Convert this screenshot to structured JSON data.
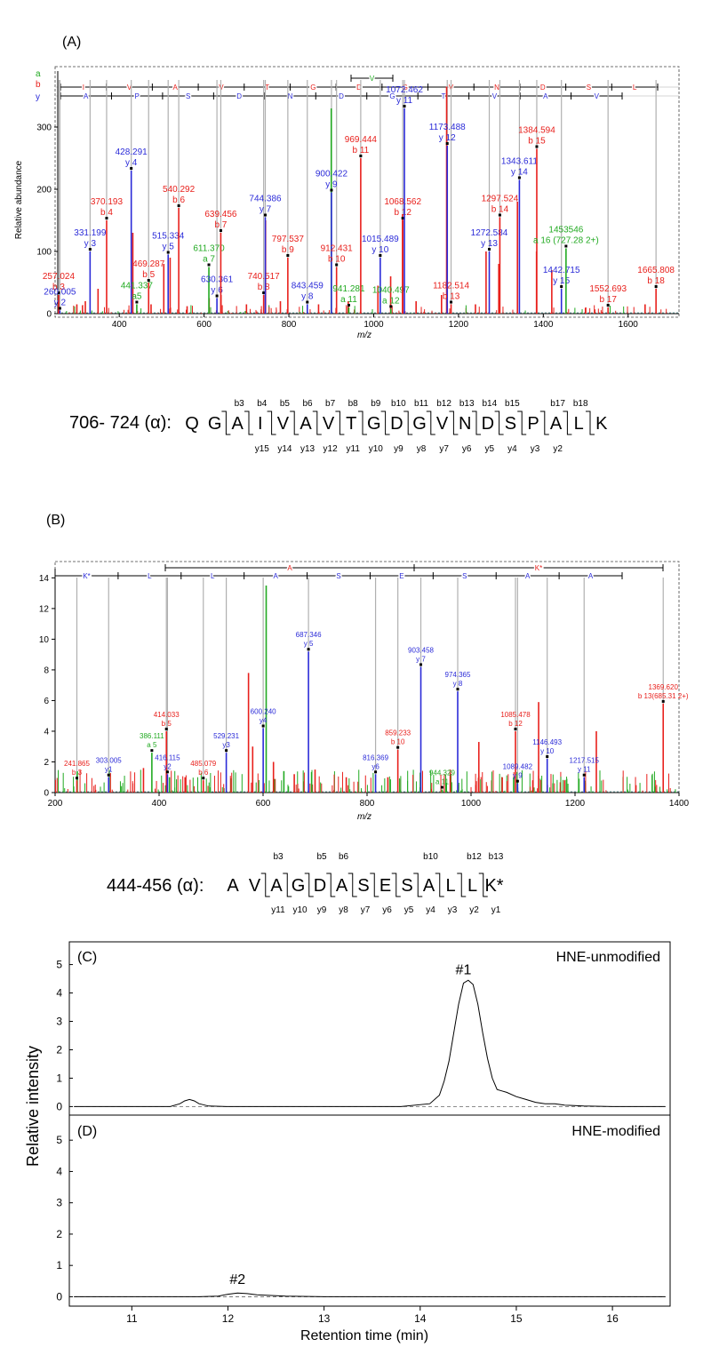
{
  "colors": {
    "a": "#22aa22",
    "b": "#e8201c",
    "y": "#2b2bd8",
    "axis": "#000000",
    "grey": "#b0b0b0",
    "dash": "#4a8a8a"
  },
  "figure": {
    "A": {
      "panel_label": "(A)",
      "ylabel": "Relative abundance",
      "xlabel": "m/z",
      "legend_a": "a",
      "legend_b": "b",
      "legend_y": "y"
    },
    "B": {
      "panel_label": "(B)",
      "xlabel": "m/z"
    },
    "C": {
      "panel_label": "(C)",
      "title": "HNE-unmodified",
      "peak_label": "#1"
    },
    "D": {
      "panel_label": "(D)",
      "title": "HNE-modified",
      "peak_label": "#2",
      "xlabel": "Retention time (min)"
    },
    "CD_ylabel": "Relative intensity"
  },
  "sequences": {
    "A": {
      "prefix": "706- 724 (α): ",
      "residues": [
        "Q",
        "G",
        "A",
        "I",
        "V",
        "A",
        "V",
        "T",
        "G",
        "D",
        "G",
        "V",
        "N",
        "D",
        "S",
        "P",
        "A",
        "L",
        "K"
      ],
      "b_labels": [
        "",
        "",
        "b3",
        "b4",
        "b5",
        "b6",
        "b7",
        "b8",
        "b9",
        "b10",
        "b11",
        "b12",
        "b13",
        "b14",
        "b15",
        "",
        "b17",
        "b18",
        ""
      ],
      "y_labels": [
        "",
        "",
        "",
        "y15",
        "y14",
        "y13",
        "y12",
        "y11",
        "y10",
        "y9",
        "y8",
        "y7",
        "y6",
        "y5",
        "y4",
        "y3",
        "y2",
        "",
        ""
      ]
    },
    "B": {
      "prefix": "444-456 (α): ",
      "residues": [
        "A",
        "V",
        "A",
        "G",
        "D",
        "A",
        "S",
        "E",
        "S",
        "A",
        "L",
        "L",
        "K*"
      ],
      "b_labels": [
        "",
        "",
        "b3",
        "",
        "b5",
        "b6",
        "",
        "",
        "",
        "b10",
        "",
        "b12",
        "b13"
      ],
      "y_labels": [
        "",
        "",
        "y11",
        "y10",
        "y9",
        "y8",
        "y7",
        "y6",
        "y5",
        "y4",
        "y3",
        "y2",
        "y1"
      ]
    }
  },
  "chart_data": [
    {
      "type": "bar",
      "panel": "A",
      "xlabel": "m/z",
      "ylabel": "Relative abundance",
      "xlim": [
        255,
        1720
      ],
      "ylim": [
        0,
        390
      ],
      "xticks": [
        400,
        600,
        800,
        1000,
        1200,
        1400,
        1600
      ],
      "yticks": [
        0,
        100,
        200,
        300
      ],
      "ion_ladders": {
        "b": [
          "I",
          "V",
          "A",
          "V",
          "T",
          "G",
          "D",
          "G",
          "V",
          "N",
          "D",
          "S",
          "L"
        ],
        "y": [
          "A",
          "P",
          "S",
          "D",
          "N",
          "D",
          "G",
          "T",
          "V",
          "A",
          "V"
        ],
        "a": [
          "V"
        ]
      },
      "labeled_peaks": [
        {
          "mz": 257.024,
          "value": 30,
          "label": "b 3",
          "series": "b"
        },
        {
          "mz": 260.005,
          "value": 5,
          "label": "y 2",
          "series": "y"
        },
        {
          "mz": 331.199,
          "value": 100,
          "label": "y 3",
          "series": "y"
        },
        {
          "mz": 370.193,
          "value": 150,
          "label": "b 4",
          "series": "b"
        },
        {
          "mz": 428.291,
          "value": 230,
          "label": "y 4",
          "series": "y"
        },
        {
          "mz": 441.337,
          "value": 15,
          "label": "a5",
          "series": "a"
        },
        {
          "mz": 469.287,
          "value": 50,
          "label": "b 5",
          "series": "b"
        },
        {
          "mz": 515.334,
          "value": 95,
          "label": "y 5",
          "series": "y"
        },
        {
          "mz": 540.292,
          "value": 170,
          "label": "b 6",
          "series": "b"
        },
        {
          "mz": 611.37,
          "value": 75,
          "label": "a 7",
          "series": "a"
        },
        {
          "mz": 630.361,
          "value": 25,
          "label": "y 6",
          "series": "y"
        },
        {
          "mz": 639.456,
          "value": 130,
          "label": "b 7",
          "series": "b"
        },
        {
          "mz": 740.517,
          "value": 30,
          "label": "b 8",
          "series": "b"
        },
        {
          "mz": 744.386,
          "value": 155,
          "label": "y 7",
          "series": "y"
        },
        {
          "mz": 797.537,
          "value": 90,
          "label": "b 9",
          "series": "b"
        },
        {
          "mz": 843.459,
          "value": 15,
          "label": "y 8",
          "series": "y"
        },
        {
          "mz": 900.422,
          "value": 195,
          "label": "y 9",
          "series": "y"
        },
        {
          "mz": 912.431,
          "value": 75,
          "label": "b 10",
          "series": "b"
        },
        {
          "mz": 941.281,
          "value": 10,
          "label": "a 11",
          "series": "a"
        },
        {
          "mz": 969.444,
          "value": 250,
          "label": "b 11",
          "series": "b"
        },
        {
          "mz": 1015.489,
          "value": 90,
          "label": "y 10",
          "series": "y"
        },
        {
          "mz": 1040.497,
          "value": 8,
          "label": "a 12",
          "series": "a"
        },
        {
          "mz": 1068.562,
          "value": 150,
          "label": "b 12",
          "series": "b"
        },
        {
          "mz": 1072.462,
          "value": 330,
          "label": "y 11",
          "series": "y"
        },
        {
          "mz": 1173.488,
          "value": 270,
          "label": "y 12",
          "series": "y"
        },
        {
          "mz": 1182.514,
          "value": 15,
          "label": "b 13",
          "series": "b"
        },
        {
          "mz": 1272.584,
          "value": 100,
          "label": "y 13",
          "series": "y"
        },
        {
          "mz": 1297.524,
          "value": 155,
          "label": "b 14",
          "series": "b"
        },
        {
          "mz": 1343.611,
          "value": 215,
          "label": "y 14",
          "series": "y"
        },
        {
          "mz": 1384.594,
          "value": 265,
          "label": "b 15",
          "series": "b"
        },
        {
          "mz": 1442.715,
          "value": 40,
          "label": "y 15",
          "series": "y"
        },
        {
          "mz": 1453.546,
          "value": 105,
          "label": "a 16 (727.28 2+)",
          "label_top": "1453546",
          "series": "a"
        },
        {
          "mz": 1552.693,
          "value": 10,
          "label": "b 17",
          "series": "b"
        },
        {
          "mz": 1665.808,
          "value": 40,
          "label": "b 18",
          "series": "b"
        }
      ],
      "unlabeled_peaks": [
        {
          "mz": 900,
          "value": 330,
          "series": "a"
        },
        {
          "mz": 1172,
          "value": 365,
          "series": "b"
        },
        {
          "mz": 1068,
          "value": 160,
          "series": "b"
        },
        {
          "mz": 432,
          "value": 130,
          "series": "b"
        },
        {
          "mz": 745,
          "value": 150,
          "series": "b"
        },
        {
          "mz": 505,
          "value": 80,
          "series": "b"
        },
        {
          "mz": 1339,
          "value": 180,
          "series": "b"
        },
        {
          "mz": 1384,
          "value": 100,
          "series": "b"
        },
        {
          "mz": 1265,
          "value": 100,
          "series": "b"
        },
        {
          "mz": 1040,
          "value": 60,
          "series": "b"
        },
        {
          "mz": 1010,
          "value": 45,
          "series": "b"
        },
        {
          "mz": 1295,
          "value": 80,
          "series": "b"
        },
        {
          "mz": 1420,
          "value": 70,
          "series": "b"
        },
        {
          "mz": 350,
          "value": 40,
          "series": "b"
        },
        {
          "mz": 320,
          "value": 20,
          "series": "b"
        },
        {
          "mz": 520,
          "value": 90,
          "series": "b"
        },
        {
          "mz": 640,
          "value": 30,
          "series": "b"
        },
        {
          "mz": 612,
          "value": 25,
          "series": "b"
        },
        {
          "mz": 780,
          "value": 20,
          "series": "b"
        },
        {
          "mz": 870,
          "value": 15,
          "series": "b"
        },
        {
          "mz": 940,
          "value": 20,
          "series": "b"
        },
        {
          "mz": 1100,
          "value": 20,
          "series": "b"
        },
        {
          "mz": 1160,
          "value": 30,
          "series": "b"
        },
        {
          "mz": 1240,
          "value": 15,
          "series": "b"
        },
        {
          "mz": 1500,
          "value": 10,
          "series": "b"
        },
        {
          "mz": 1640,
          "value": 15,
          "series": "b"
        },
        {
          "mz": 700,
          "value": 15,
          "series": "b"
        },
        {
          "mz": 300,
          "value": 15,
          "series": "b"
        },
        {
          "mz": 475,
          "value": 15,
          "series": "b"
        },
        {
          "mz": 560,
          "value": 12,
          "series": "b"
        }
      ]
    },
    {
      "type": "bar",
      "panel": "B",
      "xlabel": "m/z",
      "xlim": [
        200,
        1400
      ],
      "ylim": [
        0,
        14.6
      ],
      "xticks": [
        200,
        400,
        600,
        800,
        1000,
        1200,
        1400
      ],
      "yticks": [
        0,
        2,
        4,
        6,
        8,
        10,
        12,
        14
      ],
      "ion_ladders": {
        "b": [
          "A",
          "K*"
        ],
        "y": [
          "K*",
          "L",
          "L",
          "A",
          "S",
          "E",
          "S",
          "A",
          "A"
        ]
      },
      "labeled_peaks": [
        {
          "mz": 241.865,
          "value": 0.8,
          "label": "b 3",
          "series": "b"
        },
        {
          "mz": 303.005,
          "value": 1.0,
          "label": "y1",
          "series": "y"
        },
        {
          "mz": 386.111,
          "value": 2.6,
          "label": "a 5",
          "series": "a"
        },
        {
          "mz": 414.033,
          "value": 4.0,
          "label": "b 5",
          "series": "b"
        },
        {
          "mz": 416.115,
          "value": 1.2,
          "label": "y2",
          "series": "y"
        },
        {
          "mz": 485.079,
          "value": 0.8,
          "label": "b 6",
          "series": "b"
        },
        {
          "mz": 529.231,
          "value": 2.6,
          "label": "y3",
          "series": "y"
        },
        {
          "mz": 600.24,
          "value": 4.2,
          "label": "y4",
          "series": "y"
        },
        {
          "mz": 687.346,
          "value": 9.2,
          "label": "y 5",
          "series": "y"
        },
        {
          "mz": 816.369,
          "value": 1.2,
          "label": "y6",
          "series": "y"
        },
        {
          "mz": 859.233,
          "value": 2.8,
          "label": "b 10",
          "series": "b"
        },
        {
          "mz": 903.458,
          "value": 8.2,
          "label": "y 7",
          "series": "y"
        },
        {
          "mz": 944.329,
          "value": 0.2,
          "label": "a 11",
          "series": "a"
        },
        {
          "mz": 974.365,
          "value": 6.6,
          "label": "y 8",
          "series": "y"
        },
        {
          "mz": 1085.478,
          "value": 4.0,
          "label": "b 12",
          "series": "b"
        },
        {
          "mz": 1089.482,
          "value": 0.6,
          "label": "y 9",
          "series": "y"
        },
        {
          "mz": 1146.493,
          "value": 2.2,
          "label": "y 10",
          "series": "y"
        },
        {
          "mz": 1217.515,
          "value": 1.0,
          "label": "y 11",
          "series": "y"
        },
        {
          "mz": 1369.62,
          "value": 5.8,
          "label": "b 13(685.31 2+)",
          "series": "b"
        }
      ],
      "unlabeled_peaks": [
        {
          "mz": 606,
          "value": 13.5,
          "series": "a"
        },
        {
          "mz": 572,
          "value": 7.8,
          "series": "b"
        },
        {
          "mz": 1130,
          "value": 5.9,
          "series": "b"
        },
        {
          "mz": 1241,
          "value": 4.0,
          "series": "b"
        },
        {
          "mz": 1015,
          "value": 3.3,
          "series": "b"
        },
        {
          "mz": 580,
          "value": 3.0,
          "series": "b"
        },
        {
          "mz": 620,
          "value": 2.0,
          "series": "b"
        },
        {
          "mz": 370,
          "value": 1.6,
          "series": "b"
        },
        {
          "mz": 700,
          "value": 1.5,
          "series": "b"
        },
        {
          "mz": 960,
          "value": 1.5,
          "series": "b"
        },
        {
          "mz": 450,
          "value": 1.0,
          "series": "b"
        },
        {
          "mz": 660,
          "value": 1.2,
          "series": "b"
        },
        {
          "mz": 760,
          "value": 1.0,
          "series": "b"
        },
        {
          "mz": 840,
          "value": 1.0,
          "series": "b"
        },
        {
          "mz": 1060,
          "value": 1.0,
          "series": "b"
        },
        {
          "mz": 1180,
          "value": 0.8,
          "series": "b"
        },
        {
          "mz": 640,
          "value": 1.4,
          "series": "a"
        },
        {
          "mz": 420,
          "value": 1.0,
          "series": "a"
        },
        {
          "mz": 1082,
          "value": 1.0,
          "series": "a"
        }
      ]
    },
    {
      "type": "line",
      "panel": "C",
      "title": "HNE-unmodified",
      "xlim": [
        10.35,
        16.6
      ],
      "ylim": [
        -0.3,
        5.8
      ],
      "yticks": [
        0,
        1,
        2,
        3,
        4,
        5
      ],
      "annotation": {
        "x": 14.45,
        "y": 4.6,
        "text": "#1"
      },
      "x": [
        10.4,
        11.0,
        11.4,
        11.5,
        11.55,
        11.6,
        11.65,
        11.7,
        11.8,
        12.0,
        13.0,
        13.8,
        14.1,
        14.2,
        14.25,
        14.3,
        14.35,
        14.4,
        14.45,
        14.5,
        14.55,
        14.6,
        14.65,
        14.7,
        14.75,
        14.8,
        14.85,
        14.9,
        15.0,
        15.1,
        15.2,
        15.3,
        15.4,
        15.5,
        15.7,
        16.0,
        16.55
      ],
      "y": [
        0,
        0,
        0,
        0.1,
        0.2,
        0.25,
        0.2,
        0.1,
        0.02,
        0,
        0,
        0,
        0.1,
        0.4,
        0.9,
        1.6,
        2.6,
        3.6,
        4.35,
        4.45,
        4.3,
        3.6,
        2.6,
        1.7,
        1.0,
        0.6,
        0.55,
        0.5,
        0.35,
        0.25,
        0.15,
        0.1,
        0.1,
        0.05,
        0.02,
        0,
        0
      ]
    },
    {
      "type": "line",
      "panel": "D",
      "title": "HNE-modified",
      "xlabel": "Retention time (min)",
      "xlim": [
        10.35,
        16.6
      ],
      "ylim": [
        -0.3,
        5.8
      ],
      "xticks": [
        11,
        12,
        13,
        14,
        15,
        16
      ],
      "yticks": [
        0,
        1,
        2,
        3,
        4,
        5
      ],
      "annotation": {
        "x": 12.1,
        "y": 0.35,
        "text": "#2"
      },
      "x": [
        10.4,
        11.7,
        11.9,
        12.0,
        12.1,
        12.2,
        12.3,
        12.4,
        12.6,
        13.0,
        16.55
      ],
      "y": [
        0,
        0,
        0.02,
        0.08,
        0.12,
        0.1,
        0.06,
        0.05,
        0.02,
        0,
        0
      ]
    }
  ]
}
